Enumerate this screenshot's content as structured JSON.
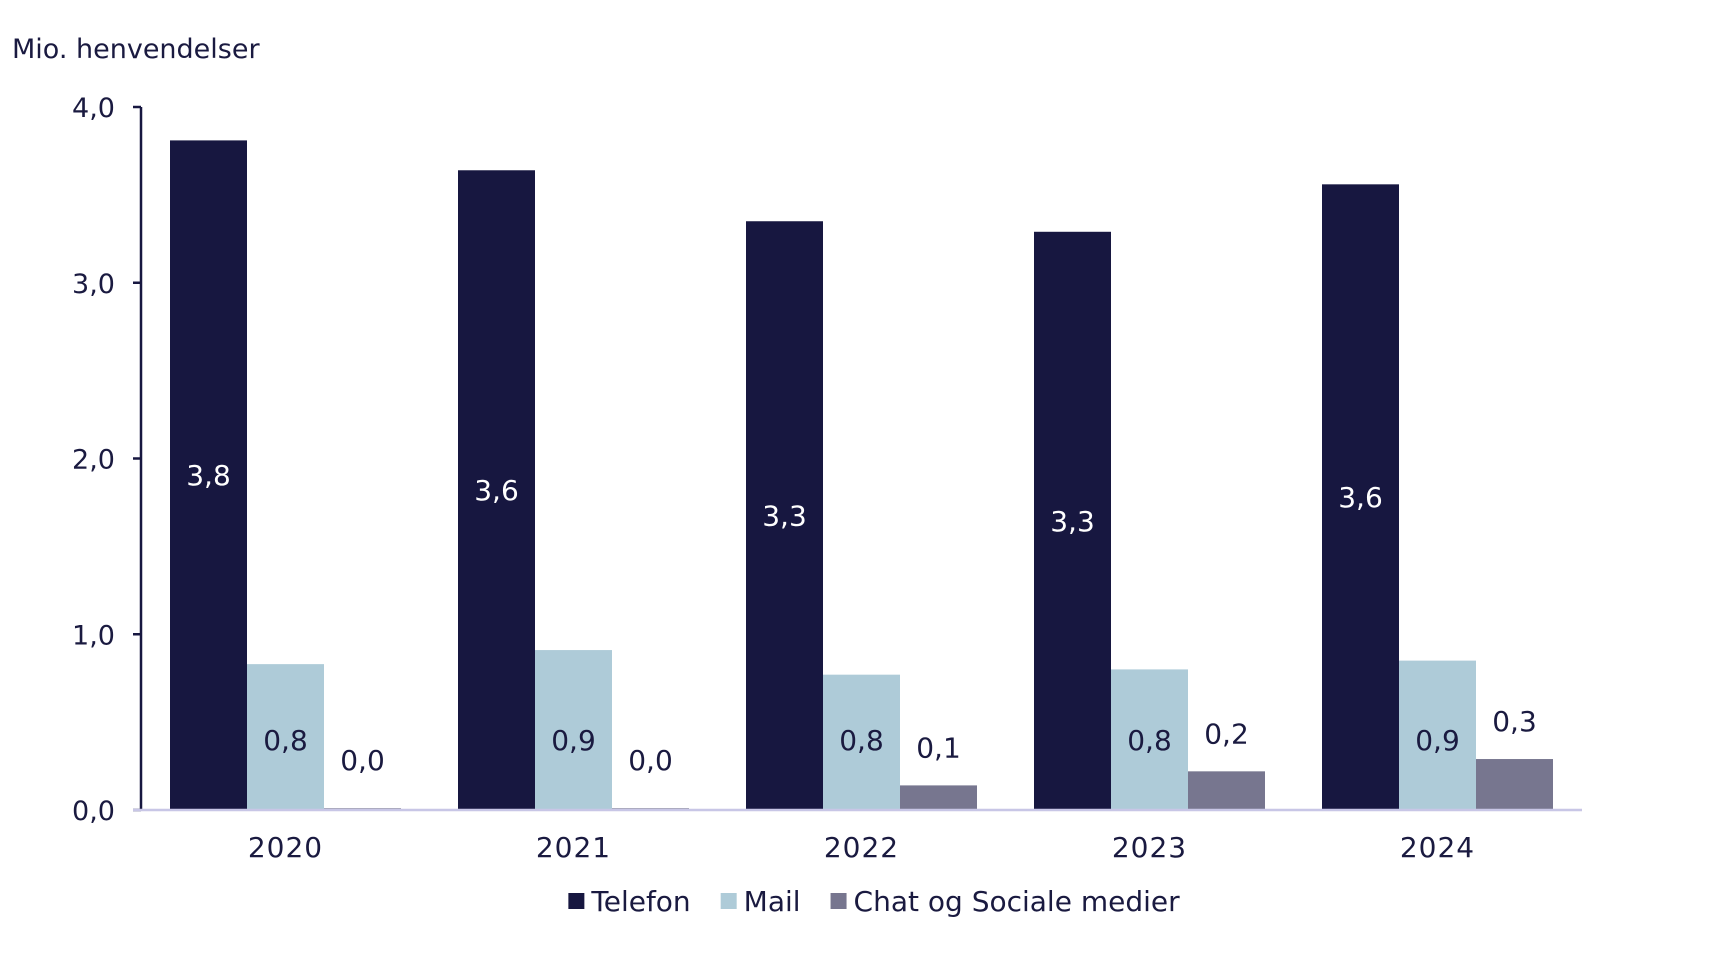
{
  "chart_data": {
    "type": "bar",
    "title": "",
    "ylabel": "Mio. henvendelser",
    "xlabel": "",
    "ylim": [
      0,
      4
    ],
    "yticks": [
      "0,0",
      "1,0",
      "2,0",
      "3,0",
      "4,0"
    ],
    "ytick_values": [
      0,
      1,
      2,
      3,
      4
    ],
    "categories": [
      "2020",
      "2021",
      "2022",
      "2023",
      "2024"
    ],
    "series": [
      {
        "name": "Telefon",
        "color": "#171740",
        "values": [
          3.81,
          3.64,
          3.35,
          3.29,
          3.56
        ],
        "labels": [
          "3,8",
          "3,6",
          "3,3",
          "3,3",
          "3,6"
        ],
        "label_color": "#ffffff",
        "label_position": "inside-middle"
      },
      {
        "name": "Mail",
        "color": "#aecbd8",
        "values": [
          0.83,
          0.91,
          0.77,
          0.8,
          0.85
        ],
        "labels": [
          "0,8",
          "0,9",
          "0,8",
          "0,8",
          "0,9"
        ],
        "label_color": "#1a1a40",
        "label_position": "inside-lower"
      },
      {
        "name": "Chat og Sociale medier",
        "color": "#77768f",
        "values": [
          0.01,
          0.01,
          0.14,
          0.22,
          0.29
        ],
        "labels": [
          "0,0",
          "0,0",
          "0,1",
          "0,2",
          "0,3"
        ],
        "label_color": "#1a1a40",
        "label_position": "above"
      }
    ],
    "legend": {
      "position": "bottom-center",
      "items": [
        "Telefon",
        "Mail",
        "Chat og Sociale medier"
      ]
    },
    "grid": false,
    "axis_color": "#171740",
    "baseline_color": "#c8c6e6"
  }
}
